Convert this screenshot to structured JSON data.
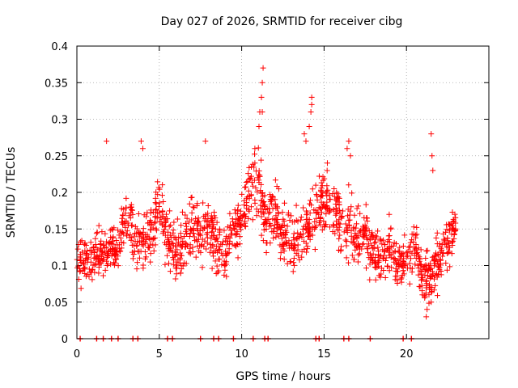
{
  "chart_data": {
    "type": "scatter",
    "title": "Day 027 of 2026, SRMTID for receiver cibg",
    "xlabel": "GPS time / hours",
    "ylabel": "SRMTID / TECUs",
    "xlim": [
      0,
      25
    ],
    "ylim": [
      0,
      0.4
    ],
    "xticks": [
      0,
      5,
      10,
      15,
      20
    ],
    "xtick_labels": [
      "0",
      "5",
      "10",
      "15",
      "20"
    ],
    "yticks": [
      0,
      0.05,
      0.1,
      0.15,
      0.2,
      0.25,
      0.3,
      0.35,
      0.4
    ],
    "ytick_labels": [
      "0",
      "0.05",
      "0.1",
      "0.15",
      "0.2",
      "0.25",
      "0.3",
      "0.35",
      "0.4"
    ],
    "grid": true,
    "marker": "plus",
    "color": "#ff0000",
    "series": [
      {
        "name": "SRMTID",
        "envelope": [
          [
            0.0,
            0.1,
            0.04
          ],
          [
            0.5,
            0.11,
            0.03
          ],
          [
            1.0,
            0.11,
            0.03
          ],
          [
            1.5,
            0.12,
            0.03
          ],
          [
            2.0,
            0.12,
            0.03
          ],
          [
            2.5,
            0.13,
            0.03
          ],
          [
            3.0,
            0.17,
            0.04
          ],
          [
            3.5,
            0.14,
            0.04
          ],
          [
            4.0,
            0.13,
            0.04
          ],
          [
            4.5,
            0.15,
            0.04
          ],
          [
            5.0,
            0.18,
            0.04
          ],
          [
            5.5,
            0.14,
            0.04
          ],
          [
            6.0,
            0.12,
            0.04
          ],
          [
            6.5,
            0.13,
            0.04
          ],
          [
            7.0,
            0.16,
            0.05
          ],
          [
            7.5,
            0.14,
            0.04
          ],
          [
            8.0,
            0.15,
            0.04
          ],
          [
            8.5,
            0.13,
            0.04
          ],
          [
            9.0,
            0.12,
            0.04
          ],
          [
            9.5,
            0.15,
            0.04
          ],
          [
            10.0,
            0.16,
            0.04
          ],
          [
            10.5,
            0.2,
            0.05
          ],
          [
            11.0,
            0.22,
            0.06
          ],
          [
            11.5,
            0.15,
            0.04
          ],
          [
            12.0,
            0.18,
            0.05
          ],
          [
            12.5,
            0.14,
            0.04
          ],
          [
            13.0,
            0.13,
            0.04
          ],
          [
            13.5,
            0.14,
            0.04
          ],
          [
            14.0,
            0.15,
            0.04
          ],
          [
            14.5,
            0.18,
            0.05
          ],
          [
            15.0,
            0.19,
            0.04
          ],
          [
            15.5,
            0.18,
            0.04
          ],
          [
            16.0,
            0.15,
            0.04
          ],
          [
            16.5,
            0.16,
            0.05
          ],
          [
            17.0,
            0.13,
            0.04
          ],
          [
            17.5,
            0.14,
            0.04
          ],
          [
            18.0,
            0.12,
            0.04
          ],
          [
            18.5,
            0.11,
            0.04
          ],
          [
            19.0,
            0.12,
            0.04
          ],
          [
            19.5,
            0.1,
            0.03
          ],
          [
            20.0,
            0.11,
            0.03
          ],
          [
            20.5,
            0.13,
            0.04
          ],
          [
            21.0,
            0.08,
            0.03
          ],
          [
            21.5,
            0.09,
            0.04
          ],
          [
            22.0,
            0.11,
            0.04
          ],
          [
            22.5,
            0.13,
            0.04
          ],
          [
            23.0,
            0.15,
            0.03
          ]
        ],
        "x_range": [
          0.0,
          23.0
        ],
        "n_points": 1500,
        "spikes": [
          [
            10.8,
            0.24
          ],
          [
            10.8,
            0.26
          ],
          [
            11.05,
            0.29
          ],
          [
            11.1,
            0.31
          ],
          [
            11.2,
            0.33
          ],
          [
            11.25,
            0.35
          ],
          [
            11.3,
            0.37
          ],
          [
            11.25,
            0.31
          ],
          [
            14.1,
            0.29
          ],
          [
            14.2,
            0.31
          ],
          [
            14.25,
            0.33
          ],
          [
            14.25,
            0.32
          ],
          [
            13.8,
            0.28
          ],
          [
            13.9,
            0.27
          ],
          [
            21.5,
            0.28
          ],
          [
            21.55,
            0.25
          ],
          [
            21.6,
            0.23
          ],
          [
            21.2,
            0.03
          ],
          [
            21.25,
            0.04
          ],
          [
            21.5,
            0.05
          ],
          [
            1.8,
            0.27
          ],
          [
            3.9,
            0.27
          ],
          [
            4.0,
            0.26
          ],
          [
            7.8,
            0.27
          ],
          [
            15.2,
            0.24
          ],
          [
            16.4,
            0.26
          ],
          [
            16.5,
            0.27
          ],
          [
            16.6,
            0.25
          ]
        ]
      },
      {
        "name": "zero",
        "x": [
          0.2,
          1.2,
          1.6,
          2.1,
          2.5,
          3.4,
          3.7,
          5.5,
          5.8,
          7.5,
          8.3,
          8.6,
          9.5,
          10.7,
          11.4,
          11.6,
          14.5,
          14.7,
          16.2,
          16.5,
          17.8,
          19.8,
          20.3
        ]
      }
    ]
  }
}
